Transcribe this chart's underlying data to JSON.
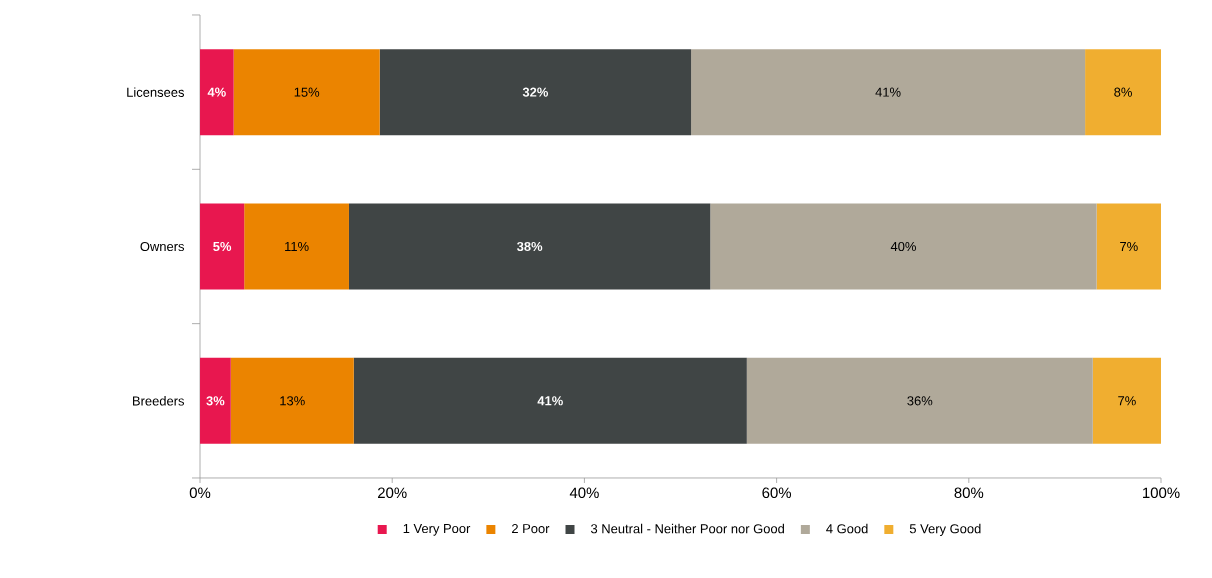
{
  "chart_data": {
    "type": "bar",
    "orientation": "horizontal",
    "stacked": true,
    "categories": [
      "Licensees",
      "Owners",
      "Breeders"
    ],
    "series": [
      {
        "name": "1 Very Poor",
        "color": "#e8174f",
        "values": [
          3.5,
          4.6,
          3.2
        ],
        "value_labels": [
          "4%",
          "5%",
          "3%"
        ]
      },
      {
        "name": "2 Poor",
        "color": "#eb8400",
        "values": [
          15.2,
          10.9,
          12.8
        ],
        "value_labels": [
          "15%",
          "11%",
          "13%"
        ]
      },
      {
        "name": "3 Neutral - Neither Poor nor Good",
        "color": "#404545",
        "values": [
          32.4,
          37.6,
          40.9
        ],
        "value_labels": [
          "32%",
          "38%",
          "41%"
        ]
      },
      {
        "name": "4 Good",
        "color": "#b0a99a",
        "values": [
          41.0,
          40.2,
          36.0
        ],
        "value_labels": [
          "41%",
          "40%",
          "36%"
        ]
      },
      {
        "name": "5 Very Good",
        "color": "#f0ae30",
        "values": [
          7.9,
          6.7,
          7.1
        ],
        "value_labels": [
          "8%",
          "7%",
          "7%"
        ]
      }
    ],
    "xlim": [
      0,
      100
    ],
    "xticks": [
      {
        "value": 0,
        "label": "0%"
      },
      {
        "value": 20,
        "label": "20%"
      },
      {
        "value": 40,
        "label": "40%"
      },
      {
        "value": 60,
        "label": "60%"
      },
      {
        "value": 80,
        "label": "80%"
      },
      {
        "value": 100,
        "label": "100%"
      }
    ],
    "legend": "bottom",
    "grid": false
  }
}
